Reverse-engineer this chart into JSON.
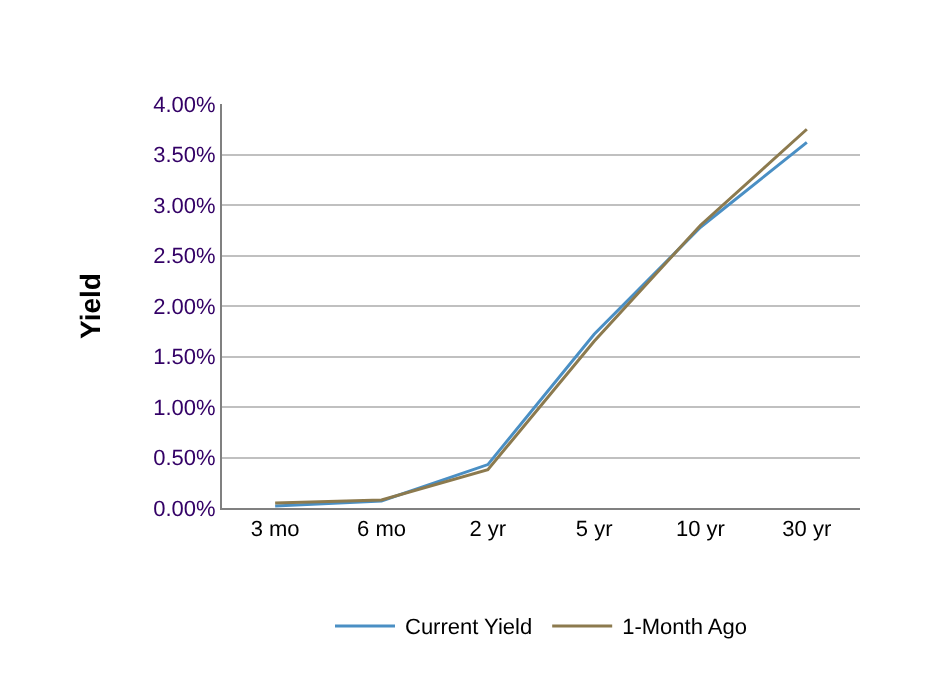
{
  "chart_data": {
    "type": "line",
    "ylabel": "Yield",
    "categories": [
      "3 mo",
      "6 mo",
      "2 yr",
      "5 yr",
      "10 yr",
      "30 yr"
    ],
    "series": [
      {
        "name": "Current Yield",
        "color": "#4a8fc4",
        "values": [
          0.02,
          0.07,
          0.43,
          1.72,
          2.78,
          3.62
        ]
      },
      {
        "name": "1-Month Ago",
        "color": "#8c7a4e",
        "values": [
          0.05,
          0.08,
          0.38,
          1.65,
          2.8,
          3.75
        ]
      }
    ],
    "ylim": [
      0,
      4
    ],
    "yticks": [
      {
        "value": 0,
        "label": "0.00%"
      },
      {
        "value": 0.5,
        "label": "0.50%"
      },
      {
        "value": 1,
        "label": "1.00%"
      },
      {
        "value": 1.5,
        "label": "1.50%"
      },
      {
        "value": 2,
        "label": "2.00%"
      },
      {
        "value": 2.5,
        "label": "2.50%"
      },
      {
        "value": 3,
        "label": "3.00%"
      },
      {
        "value": 3.5,
        "label": "3.50%"
      },
      {
        "value": 4,
        "label": "4.00%"
      }
    ],
    "grid": "y",
    "legend": "bottom",
    "marker": "none",
    "line_style": "solid"
  }
}
